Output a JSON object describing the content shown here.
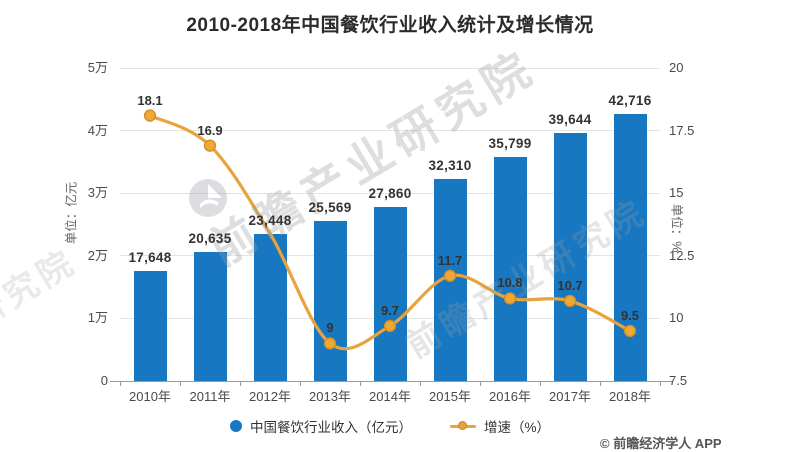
{
  "title": "2010-2018年中国餐饮行业收入统计及增长情况",
  "footer": "© 前瞻经济学人 APP",
  "watermark": {
    "brand": "前瞻产业研究院"
  },
  "legend": [
    {
      "label": "中国餐饮行业收入（亿元）",
      "marker": "circle",
      "color": "#1778c1"
    },
    {
      "label": "增速（%）",
      "marker": "line-dot",
      "color": "#e8a33c"
    }
  ],
  "chart_data": {
    "type": "bar",
    "title": "2010-2018年中国餐饮行业收入统计及增长情况",
    "categories": [
      "2010年",
      "2011年",
      "2012年",
      "2013年",
      "2014年",
      "2015年",
      "2016年",
      "2017年",
      "2018年"
    ],
    "series": [
      {
        "name": "中国餐饮行业收入（亿元）",
        "type": "bar",
        "yaxis": "left",
        "color": "#1778c1",
        "values": [
          17648,
          20635,
          23448,
          25569,
          27860,
          32310,
          35799,
          39644,
          42716
        ],
        "labels": [
          "17,648",
          "20,635",
          "23,448",
          "25,569",
          "27,860",
          "32,310",
          "35,799",
          "39,644",
          "42,716"
        ]
      },
      {
        "name": "增速（%）",
        "type": "line",
        "yaxis": "right",
        "color": "#e8a33c",
        "values": [
          18.1,
          16.9,
          13.4,
          9,
          9.7,
          11.7,
          10.8,
          10.7,
          9.5
        ],
        "labels": [
          "18.1",
          "16.9",
          "",
          "9",
          "9.7",
          "11.7",
          "10.8",
          "10.7",
          "9.5"
        ]
      }
    ],
    "left_axis": {
      "name": "单位：亿元",
      "min": 0,
      "max": 50000,
      "ticks": [
        "0",
        "1万",
        "2万",
        "3万",
        "4万",
        "5万"
      ]
    },
    "right_axis": {
      "name": "单位：%",
      "min": 7.5,
      "max": 20,
      "ticks": [
        "7.5",
        "10",
        "12.5",
        "15",
        "17.5",
        "20"
      ]
    },
    "grid": true,
    "legend_position": "bottom"
  }
}
